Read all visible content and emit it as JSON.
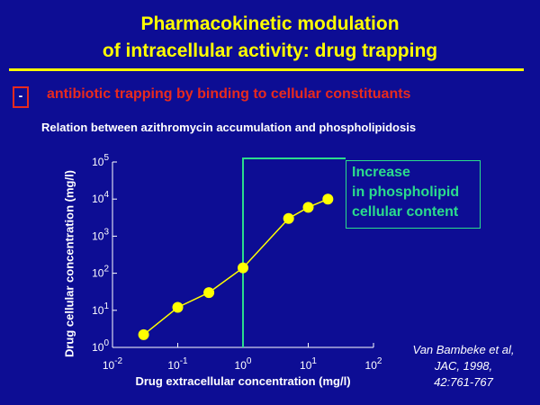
{
  "slide": {
    "title_line1": "Pharmacokinetic modulation",
    "title_line2": "of intracellular activity: drug trapping",
    "bullet_symbol": "-",
    "bullet_text": "antibiotic trapping by binding to cellular constituants",
    "subtitle": "Relation between azithromycin accumulation and phospholipidosis",
    "annotation_line1": "Increase",
    "annotation_line2": "in phospholipid",
    "annotation_line3": "cellular content",
    "citation_line1": "Van Bambeke et al,",
    "citation_line2": "JAC, 1998,",
    "citation_line3": "42:761-767"
  },
  "colors": {
    "background": "#0d0d94",
    "title": "#ffff00",
    "bullet": "#e82a1e",
    "series": "#ffff00",
    "annotation": "#2bdc8c",
    "axis": "#ffffff"
  },
  "chart_data": {
    "type": "line",
    "xscale": "log",
    "yscale": "log",
    "xlabel": "Drug extracellular concentration (mg/l)",
    "ylabel": "Drug cellular concentration (mg/l)",
    "xlim": [
      0.01,
      100
    ],
    "ylim": [
      1,
      100000
    ],
    "x_ticks": [
      {
        "base": "10",
        "exp": "-2"
      },
      {
        "base": "10",
        "exp": "-1"
      },
      {
        "base": "10",
        "exp": "0"
      },
      {
        "base": "10",
        "exp": "1"
      },
      {
        "base": "10",
        "exp": "2"
      }
    ],
    "y_ticks": [
      {
        "base": "10",
        "exp": "0"
      },
      {
        "base": "10",
        "exp": "1"
      },
      {
        "base": "10",
        "exp": "2"
      },
      {
        "base": "10",
        "exp": "3"
      },
      {
        "base": "10",
        "exp": "4"
      },
      {
        "base": "10",
        "exp": "5"
      }
    ],
    "series": [
      {
        "x": [
          0.03,
          0.1,
          0.3,
          1,
          5,
          10,
          20
        ],
        "y": [
          2.2,
          12,
          30,
          140,
          3000,
          6000,
          10000
        ]
      }
    ],
    "threshold_x": 1,
    "grid": false
  }
}
